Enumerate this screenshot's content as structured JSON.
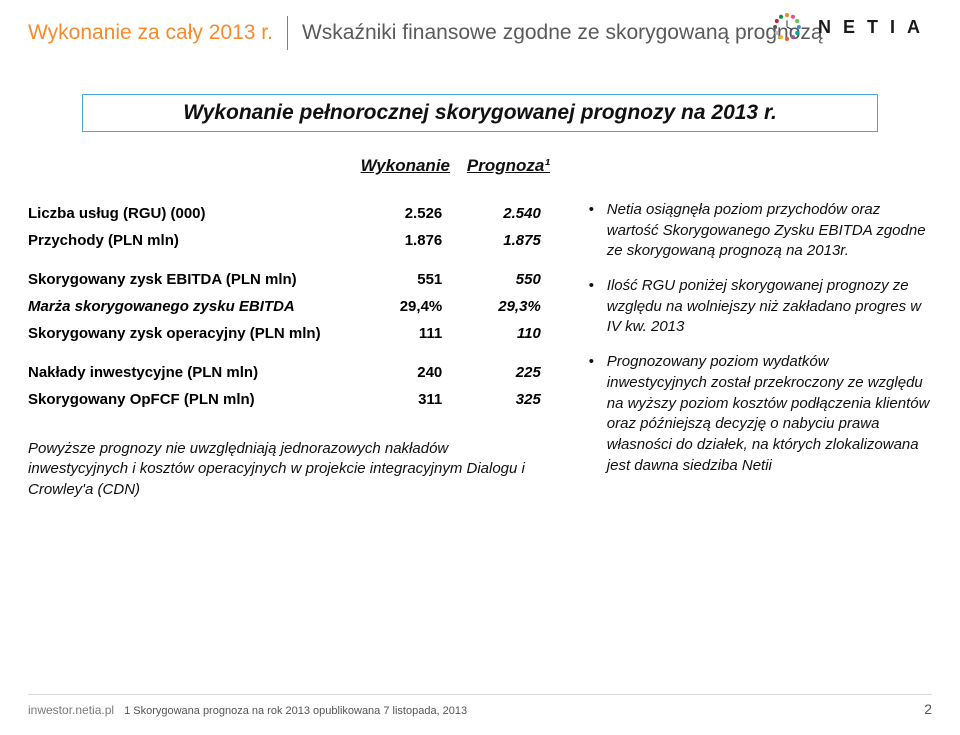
{
  "header": {
    "title": "Wykonanie za cały 2013 r.",
    "subtitle": "Wskaźniki finansowe zgodne ze skorygowaną  prognozą",
    "brand_name": "NETIA"
  },
  "banner": "Wykonanie pełnorocznej skorygowanej prognozy na 2013 r.",
  "columns": {
    "exec": "Wykonanie",
    "forecast": "Prognoza¹"
  },
  "table": {
    "rows": [
      {
        "label": "Liczba usług (RGU) (000)",
        "exec": "2.526",
        "fcst": "2.540",
        "bold": true
      },
      {
        "label": "Przychody (PLN mln)",
        "exec": "1.876",
        "fcst": "1.875",
        "bold": true
      },
      {
        "gap": true
      },
      {
        "label": "Skorygowany zysk EBITDA (PLN mln)",
        "exec": "551",
        "fcst": "550",
        "bold": true
      },
      {
        "label": "Marża skorygowanego zysku EBITDA",
        "exec": "29,4%",
        "fcst": "29,3%",
        "bold": true,
        "labelItalic": true
      },
      {
        "label": "Skorygowany zysk operacyjny (PLN mln)",
        "exec": "111",
        "fcst": "110",
        "bold": true
      },
      {
        "gap": true
      },
      {
        "label": "Nakłady inwestycyjne (PLN mln)",
        "exec": "240",
        "fcst": "225",
        "bold": true
      },
      {
        "label": "Skorygowany OpFCF (PLN mln)",
        "exec": "311",
        "fcst": "325",
        "bold": true
      }
    ]
  },
  "footnote_left": "Powyższe prognozy nie uwzględniają jednorazowych nakładów inwestycyjnych i kosztów operacyjnych w projekcie integracyjnym Dialogu i Crowley'a (CDN)",
  "bullets": [
    "Netia osiągnęła poziom przychodów oraz wartość Skorygowanego Zysku EBITDA zgodne ze skorygowaną prognozą na 2013r.",
    "Ilość RGU poniżej skorygowanej prognozy ze względu na wolniejszy niż zakładano progres w IV kw. 2013",
    "Prognozowany poziom wydatków inwestycyjnych został przekroczony ze względu na wyższy poziom kosztów podłączenia klientów oraz późniejszą decyzję o nabyciu prawa własności do działek, na których zlokalizowana jest dawna siedziba Netii"
  ],
  "footer": {
    "site": "inwestor.netia.pl",
    "note": "1 Skorygowana prognoza na rok 2013 opublikowana 7 listopada, 2013",
    "page": "2"
  },
  "colors": {
    "accent_orange": "#f78b2b",
    "accent_blue": "#4aa7e0",
    "brand_dots": [
      "#f78b2b",
      "#e94e8a",
      "#6cc04a",
      "#2e9bd6",
      "#00a99d",
      "#8b5ba5",
      "#f15a29",
      "#fdb813",
      "#bcbec0",
      "#5a5a5a",
      "#c1272d",
      "#009444"
    ]
  }
}
